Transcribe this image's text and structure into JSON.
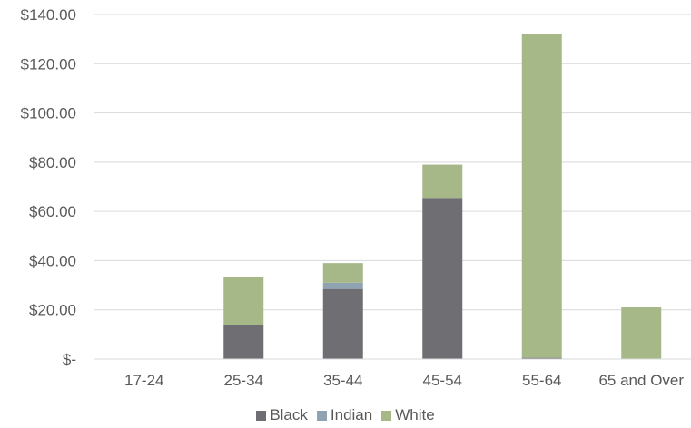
{
  "chart_data": {
    "type": "bar",
    "stacked": true,
    "categories": [
      "17-24",
      "25-34",
      "35-44",
      "45-54",
      "55-64",
      "65 and Over"
    ],
    "series": [
      {
        "name": "Black",
        "color": "#6f6e73",
        "values": [
          0,
          14,
          28.5,
          65.5,
          0.5,
          0
        ]
      },
      {
        "name": "Indian",
        "color": "#8fa3b3",
        "values": [
          0,
          0,
          2.5,
          0,
          0,
          0
        ]
      },
      {
        "name": "White",
        "color": "#a6b887",
        "values": [
          0,
          19.5,
          8,
          13.5,
          131.5,
          21
        ]
      }
    ],
    "ylim": [
      0,
      140
    ],
    "yticks": [
      0,
      20,
      40,
      60,
      80,
      100,
      120,
      140
    ],
    "ytick_labels": [
      "$-",
      "$20.00",
      "$40.00",
      "$60.00",
      "$80.00",
      "$100.00",
      "$120.00",
      "$140.00"
    ],
    "grid": true,
    "legend_position": "bottom",
    "title": "",
    "xlabel": "",
    "ylabel": ""
  }
}
